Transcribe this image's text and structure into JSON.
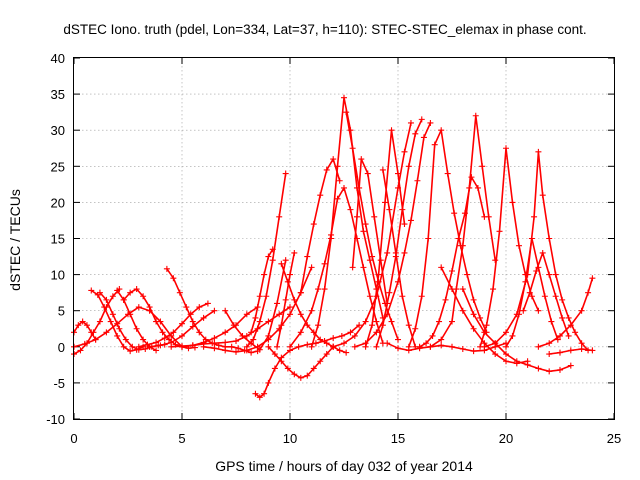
{
  "chart_data": {
    "type": "scatter",
    "title": "dSTEC Iono. truth (pdel, Lon=334, Lat=37, h=110): STEC-STEC_elemax in phase cont.",
    "xlabel": "GPS time / hours of day 032 of year 2014",
    "ylabel": "dSTEC  / TECUs",
    "xlim": [
      0,
      25
    ],
    "ylim": [
      -10,
      40
    ],
    "xticks": [
      0,
      5,
      10,
      15,
      20,
      25
    ],
    "yticks": [
      -10,
      -5,
      0,
      5,
      10,
      15,
      20,
      25,
      30,
      35,
      40
    ],
    "grid": true,
    "legend": "none",
    "marker": "+",
    "color": "#ff0000",
    "series": [
      {
        "x": [
          0.0,
          0.3,
          0.6,
          0.9,
          1.2,
          1.5,
          1.8,
          2.1
        ],
        "y": [
          -1.0,
          -0.5,
          0.5,
          2.0,
          3.5,
          5.5,
          7.0,
          8.0
        ]
      },
      {
        "x": [
          0.0,
          0.2,
          0.4,
          0.6,
          0.8,
          1.0
        ],
        "y": [
          2.0,
          3.0,
          3.5,
          3.0,
          2.0,
          1.0
        ]
      },
      {
        "x": [
          0.8,
          1.1,
          1.4,
          1.7,
          2.0,
          2.3,
          2.6,
          2.9,
          3.2
        ],
        "y": [
          7.8,
          7.2,
          5.5,
          3.5,
          1.5,
          0.0,
          -0.6,
          -0.4,
          0.0
        ]
      },
      {
        "x": [
          1.2,
          1.5,
          1.8,
          2.1,
          2.4,
          2.7,
          3.0,
          3.3,
          3.6,
          3.9,
          4.2
        ],
        "y": [
          7.5,
          6.5,
          4.5,
          2.5,
          1.0,
          0.0,
          -0.4,
          -0.3,
          0.0,
          0.2,
          0.3
        ]
      },
      {
        "x": [
          2.0,
          2.3,
          2.6,
          2.9,
          3.2,
          3.5,
          3.8
        ],
        "y": [
          7.8,
          6.5,
          4.5,
          2.5,
          1.0,
          0.0,
          -0.5
        ]
      },
      {
        "x": [
          0.0,
          0.5,
          1.0,
          1.5,
          2.0,
          2.5,
          3.0,
          3.5,
          4.0,
          4.5,
          5.0
        ],
        "y": [
          0.0,
          0.4,
          1.0,
          2.0,
          3.2,
          4.5,
          5.5,
          5.0,
          3.5,
          1.5,
          0.0
        ]
      },
      {
        "x": [
          2.3,
          2.6,
          2.9,
          3.2,
          3.5,
          3.8,
          4.1,
          4.4,
          4.7,
          5.0,
          5.3,
          5.6
        ],
        "y": [
          6.5,
          7.5,
          8.0,
          7.0,
          5.5,
          3.5,
          2.0,
          1.0,
          0.3,
          0.0,
          -0.2,
          -0.1
        ]
      },
      {
        "x": [
          4.3,
          4.6,
          4.9,
          5.2,
          5.5,
          5.8,
          6.1,
          6.4,
          6.7,
          7.0,
          7.3,
          7.6,
          7.9,
          8.2,
          8.5
        ],
        "y": [
          10.8,
          9.5,
          7.5,
          5.5,
          3.5,
          2.0,
          1.0,
          0.5,
          0.2,
          0.0,
          0.0,
          -0.2,
          -0.5,
          -0.8,
          -0.6
        ]
      },
      {
        "x": [
          3.0,
          3.4,
          3.8,
          4.2,
          4.6,
          5.0,
          5.4,
          5.8,
          6.2
        ],
        "y": [
          0.0,
          0.3,
          0.6,
          1.2,
          2.0,
          3.2,
          4.5,
          5.5,
          6.0
        ]
      },
      {
        "x": [
          3.5,
          4.0,
          4.5,
          5.0,
          5.5,
          6.0,
          6.5
        ],
        "y": [
          0.0,
          0.2,
          0.6,
          1.5,
          2.8,
          4.0,
          5.0
        ]
      },
      {
        "x": [
          4.5,
          5.0,
          5.5,
          6.0,
          6.5,
          7.0,
          7.5,
          8.0,
          8.5,
          9.0,
          9.5,
          10.0
        ],
        "y": [
          0.0,
          0.1,
          0.2,
          0.4,
          0.5,
          0.6,
          0.8,
          1.5,
          2.5,
          3.5,
          4.5,
          5.5
        ]
      },
      {
        "x": [
          5.0,
          5.5,
          6.0,
          6.5,
          7.0,
          7.5,
          8.0,
          8.5
        ],
        "y": [
          0.0,
          0.2,
          0.6,
          1.2,
          2.0,
          3.0,
          4.5,
          5.5
        ]
      },
      {
        "x": [
          6.0,
          6.5,
          7.0,
          7.5,
          8.0,
          8.5,
          9.0,
          9.5,
          10.0,
          10.5,
          11.0
        ],
        "y": [
          0.0,
          -0.2,
          -0.5,
          -0.7,
          -0.5,
          0.0,
          1.0,
          2.5,
          4.5,
          7.5,
          11.0
        ]
      },
      {
        "x": [
          7.0,
          7.4,
          7.8,
          8.2,
          8.6,
          9.0,
          9.4,
          9.8
        ],
        "y": [
          5.0,
          3.0,
          1.5,
          0.5,
          -0.4,
          1.5,
          6.0,
          12.0
        ]
      },
      {
        "x": [
          8.0,
          8.3,
          8.6,
          8.9,
          9.2,
          9.5,
          9.8
        ],
        "y": [
          0.0,
          1.0,
          3.5,
          7.0,
          12.0,
          18.0,
          24.0
        ]
      },
      {
        "x": [
          8.2,
          8.4,
          8.6,
          8.8,
          9.0,
          9.2
        ],
        "y": [
          2.0,
          4.0,
          7.0,
          10.0,
          12.5,
          13.5
        ]
      },
      {
        "x": [
          8.4,
          8.6,
          8.8,
          9.0,
          9.3,
          9.6,
          10.0,
          10.4,
          10.8,
          11.2,
          11.6,
          12.0,
          12.4,
          12.8,
          13.2
        ],
        "y": [
          -6.5,
          -7.0,
          -6.5,
          -5.0,
          -3.0,
          -1.5,
          -0.5,
          0.0,
          0.3,
          0.5,
          0.8,
          1.2,
          1.5,
          2.0,
          3.0
        ]
      },
      {
        "x": [
          9.0,
          9.3,
          9.6,
          9.9,
          10.2,
          10.5,
          10.8,
          11.1,
          11.4,
          11.7,
          12.0
        ],
        "y": [
          0.0,
          -1.0,
          -2.0,
          -3.0,
          -3.8,
          -4.3,
          -4.0,
          -3.0,
          -2.0,
          -1.0,
          0.0
        ]
      },
      {
        "x": [
          9.6,
          9.9,
          10.2,
          10.5,
          10.8,
          11.1,
          11.4,
          11.7,
          12.0,
          12.3,
          12.6
        ],
        "y": [
          11.5,
          9.0,
          6.5,
          4.5,
          3.0,
          2.0,
          1.0,
          0.5,
          0.0,
          -0.5,
          -0.8
        ]
      },
      {
        "x": [
          9.4,
          9.6,
          9.8,
          10.0,
          10.2
        ],
        "y": [
          0.0,
          3.0,
          6.5,
          10.0,
          13.0
        ]
      },
      {
        "x": [
          10.0,
          10.5,
          11.0,
          11.3,
          11.6,
          11.9,
          12.2,
          12.5,
          12.8,
          13.1,
          13.4,
          13.7,
          14.0,
          14.3
        ],
        "y": [
          0.0,
          2.0,
          5.0,
          8.0,
          11.5,
          15.5,
          20.5,
          22.0,
          19.0,
          15.0,
          11.0,
          7.0,
          3.5,
          0.5
        ]
      },
      {
        "x": [
          10.5,
          10.8,
          11.1,
          11.4,
          11.7,
          12.0,
          12.3
        ],
        "y": [
          7.5,
          12.5,
          17.0,
          21.0,
          24.5,
          26.0,
          23.0
        ]
      },
      {
        "x": [
          11.0,
          11.3,
          11.6,
          11.9,
          12.2,
          12.5,
          12.8,
          13.1,
          13.4,
          13.7,
          14.0,
          14.3
        ],
        "y": [
          0.0,
          3.0,
          8.0,
          15.0,
          25.0,
          34.5,
          30.0,
          22.0,
          16.0,
          12.0,
          8.0,
          4.0
        ]
      },
      {
        "x": [
          12.6,
          12.9,
          13.2,
          13.5,
          13.8,
          14.1,
          14.4,
          14.7,
          15.0
        ],
        "y": [
          32.5,
          27.5,
          22.0,
          17.0,
          12.5,
          9.0,
          6.0,
          3.5,
          1.0
        ]
      },
      {
        "x": [
          12.9,
          13.1,
          13.3,
          13.6,
          13.9,
          14.2,
          14.5
        ],
        "y": [
          11.0,
          18.0,
          26.0,
          24.0,
          18.0,
          12.0,
          6.0
        ]
      },
      {
        "x": [
          12.0,
          12.5,
          13.0,
          13.5,
          14.0,
          14.5,
          15.0,
          15.3,
          15.6
        ],
        "y": [
          0.0,
          0.5,
          1.5,
          3.5,
          7.0,
          13.0,
          22.0,
          27.0,
          31.0
        ]
      },
      {
        "x": [
          13.0,
          13.5,
          14.0,
          14.5,
          15.0,
          15.3,
          15.6,
          15.9,
          16.2,
          16.5
        ],
        "y": [
          0.0,
          0.5,
          2.0,
          4.5,
          9.0,
          13.0,
          17.5,
          23.0,
          29.0,
          31.0
        ]
      },
      {
        "x": [
          14.0,
          14.3,
          14.6,
          14.9,
          15.2,
          15.5,
          15.8,
          16.1
        ],
        "y": [
          0.0,
          3.0,
          7.5,
          12.5,
          19.0,
          25.0,
          29.5,
          31.5
        ]
      },
      {
        "x": [
          14.3,
          14.6,
          14.9,
          15.2,
          15.5,
          15.8
        ],
        "y": [
          24.5,
          19.0,
          13.0,
          7.0,
          3.0,
          0.0
        ]
      },
      {
        "x": [
          13.5,
          13.8,
          14.1,
          14.4,
          14.7,
          15.0,
          15.3
        ],
        "y": [
          0.0,
          3.0,
          10.0,
          20.0,
          30.0,
          24.0,
          17.0
        ]
      },
      {
        "x": [
          15.5,
          15.8,
          16.1,
          16.4,
          16.7,
          17.0,
          17.3,
          17.6,
          17.9,
          18.2,
          18.5,
          18.8,
          19.1
        ],
        "y": [
          0.0,
          2.5,
          7.0,
          15.0,
          28.0,
          30.0,
          24.0,
          18.5,
          14.0,
          10.0,
          6.5,
          4.0,
          2.0
        ]
      },
      {
        "x": [
          16.0,
          16.3,
          16.6,
          16.9,
          17.2,
          17.5,
          17.8,
          18.1,
          18.4,
          18.7,
          19.0
        ],
        "y": [
          0.0,
          0.5,
          1.5,
          3.5,
          6.5,
          10.5,
          15.0,
          18.5,
          23.5,
          22.0,
          18.0
        ]
      },
      {
        "x": [
          14.5,
          15.0,
          15.5,
          16.0,
          16.5,
          17.0,
          17.5,
          18.0,
          18.5,
          19.0,
          19.5,
          20.0
        ],
        "y": [
          0.5,
          -0.2,
          -0.5,
          -0.2,
          0.0,
          0.2,
          0.0,
          -0.3,
          -0.6,
          -0.5,
          0.0,
          0.5
        ]
      },
      {
        "x": [
          16.5,
          17.0,
          17.5,
          17.7,
          18.0,
          18.3,
          18.6,
          18.9,
          19.2,
          19.5
        ],
        "y": [
          0.0,
          1.0,
          3.5,
          8.0,
          14.0,
          22.0,
          32.0,
          25.0,
          18.0,
          12.0
        ]
      },
      {
        "x": [
          17.0,
          17.5,
          18.0,
          18.5,
          19.0,
          19.5,
          20.0,
          20.5,
          21.0
        ],
        "y": [
          11.0,
          8.0,
          5.0,
          2.5,
          0.5,
          -1.0,
          -2.0,
          -2.3,
          -2.0
        ]
      },
      {
        "x": [
          18.0,
          18.5,
          19.0,
          19.5,
          20.0,
          20.5,
          21.0,
          21.5,
          22.0,
          22.5,
          23.0
        ],
        "y": [
          8.0,
          4.5,
          2.0,
          0.5,
          -1.0,
          -2.0,
          -2.5,
          -3.0,
          -3.4,
          -3.2,
          -2.6
        ]
      },
      {
        "x": [
          18.8,
          19.1,
          19.4,
          19.7,
          20.0,
          20.3,
          20.6,
          20.9,
          21.2,
          21.5
        ],
        "y": [
          0.0,
          3.0,
          8.0,
          16.0,
          27.5,
          20.0,
          14.0,
          10.0,
          7.0,
          5.0
        ]
      },
      {
        "x": [
          19.0,
          19.5,
          20.0,
          20.5,
          21.0,
          21.3,
          21.5,
          21.7,
          22.0,
          22.3,
          22.6,
          22.9,
          23.2,
          23.5,
          23.8
        ],
        "y": [
          0.0,
          0.5,
          2.0,
          4.5,
          10.0,
          18.0,
          27.0,
          21.0,
          15.0,
          10.0,
          6.5,
          4.0,
          2.0,
          0.5,
          -0.5
        ]
      },
      {
        "x": [
          20.0,
          20.3,
          20.6,
          20.9,
          21.2,
          21.5,
          21.8,
          22.1,
          22.4
        ],
        "y": [
          0.0,
          1.5,
          4.5,
          9.0,
          15.0,
          11.0,
          7.0,
          3.5,
          1.0
        ]
      },
      {
        "x": [
          20.8,
          21.1,
          21.4,
          21.7,
          22.0,
          22.3,
          22.6,
          22.9
        ],
        "y": [
          5.0,
          7.5,
          10.5,
          13.0,
          10.0,
          7.0,
          4.0,
          1.5
        ]
      },
      {
        "x": [
          21.5,
          22.0,
          22.5,
          23.0,
          23.5,
          23.8,
          24.0
        ],
        "y": [
          0.0,
          0.5,
          1.5,
          3.0,
          5.0,
          7.5,
          9.5
        ]
      },
      {
        "x": [
          22.0,
          22.5,
          23.0,
          23.5,
          24.0
        ],
        "y": [
          -1.0,
          -0.8,
          -0.5,
          -0.3,
          -0.5
        ]
      }
    ]
  }
}
